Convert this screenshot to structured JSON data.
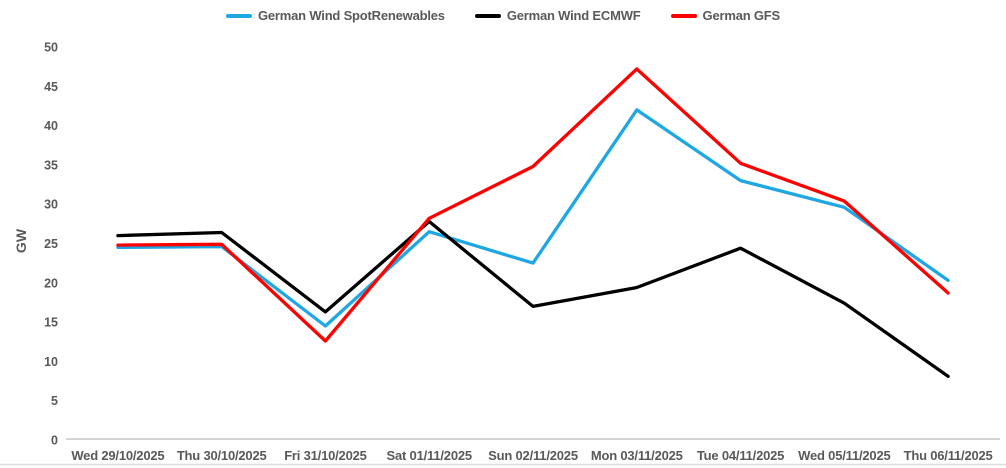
{
  "chart_data": {
    "type": "line",
    "title": "",
    "ylabel": "GW",
    "xlabel": "",
    "ylim": [
      0,
      50
    ],
    "ytick_step": 5,
    "grid": false,
    "legend_position": "top-center",
    "categories": [
      "Wed 29/10/2025",
      "Thu 30/10/2025",
      "Fri 31/10/2025",
      "Sat 01/11/2025",
      "Sun 02/11/2025",
      "Mon 03/11/2025",
      "Tue 04/11/2025",
      "Wed 05/11/2025",
      "Thu 06/11/2025"
    ],
    "series": [
      {
        "name": "German Wind SpotRenewables",
        "color": "#1EA7E3",
        "values": [
          24.5,
          24.6,
          14.5,
          26.5,
          22.5,
          42.0,
          33.0,
          29.6,
          20.3
        ]
      },
      {
        "name": "German Wind ECMWF",
        "color": "#000000",
        "values": [
          26.0,
          26.4,
          16.3,
          27.8,
          17.0,
          19.4,
          24.4,
          17.4,
          8.1
        ]
      },
      {
        "name": "German GFS",
        "color": "#FF0000",
        "values": [
          24.8,
          24.9,
          12.6,
          28.2,
          34.8,
          47.2,
          35.2,
          30.4,
          18.7
        ]
      }
    ]
  },
  "colors": {
    "axis_line": "#C6C6C6",
    "bottom_border": "#DCDCDC",
    "tick_text": "#595959"
  }
}
